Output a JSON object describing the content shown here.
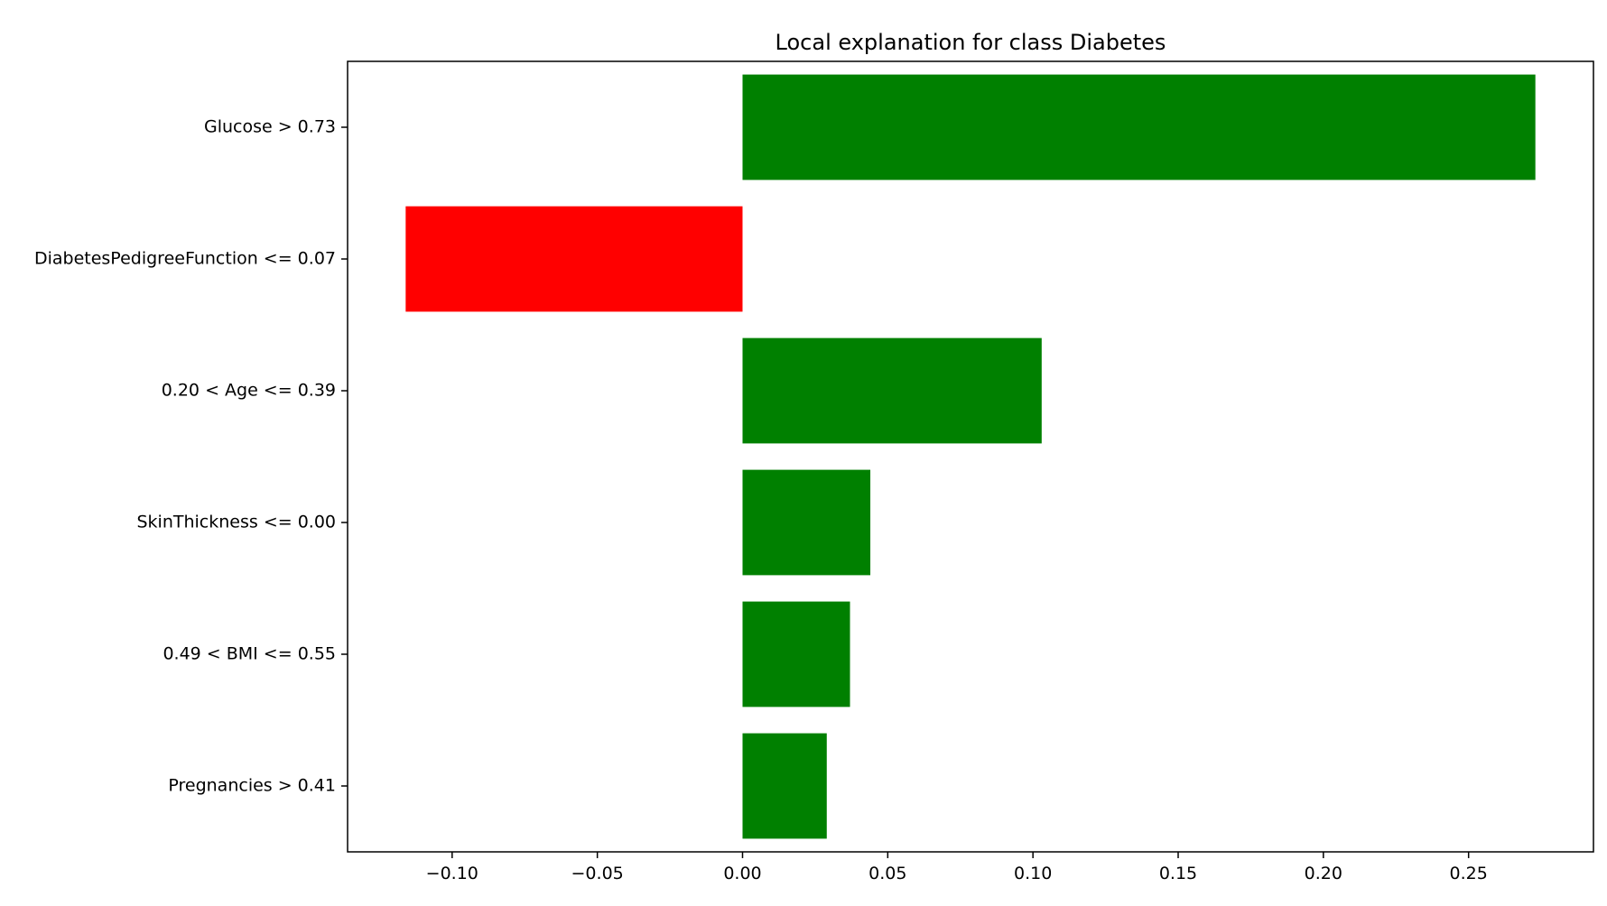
{
  "chart_data": {
    "type": "bar",
    "orientation": "horizontal",
    "title": "Local explanation for class Diabetes",
    "xlabel": "",
    "ylabel": "",
    "categories": [
      "Glucose > 0.73",
      "DiabetesPedigreeFunction <= 0.07",
      "0.20 < Age <= 0.39",
      "SkinThickness <= 0.00",
      "0.49 < BMI <= 0.55",
      "Pregnancies > 0.41"
    ],
    "values": [
      0.273,
      -0.116,
      0.103,
      0.044,
      0.037,
      0.029
    ],
    "xlim": [
      -0.136,
      0.293
    ],
    "xticks": [
      -0.1,
      -0.05,
      0.0,
      0.05,
      0.1,
      0.15,
      0.2,
      0.25
    ],
    "xtick_labels": [
      "−0.10",
      "−0.05",
      "0.00",
      "0.05",
      "0.10",
      "0.15",
      "0.20",
      "0.25"
    ],
    "grid": false,
    "colors": {
      "positive": "#008000",
      "negative": "#ff0000",
      "axis": "#000000",
      "background": "#ffffff"
    }
  }
}
